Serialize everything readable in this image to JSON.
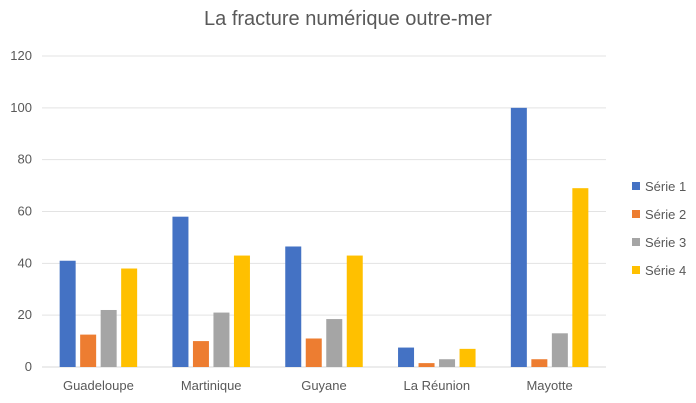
{
  "chart_data": {
    "type": "bar",
    "title": "La fracture numérique outre-mer",
    "categories": [
      "Guadeloupe",
      "Martinique",
      "Guyane",
      "La Réunion",
      "Mayotte"
    ],
    "series": [
      {
        "name": "Série 1",
        "color": "#4472C4",
        "values": [
          41,
          58,
          46.5,
          7.5,
          100
        ]
      },
      {
        "name": "Série 2",
        "color": "#ED7D31",
        "values": [
          12.5,
          10,
          11,
          1.5,
          3
        ]
      },
      {
        "name": "Série 3",
        "color": "#A5A5A5",
        "values": [
          22,
          21,
          18.5,
          3,
          13
        ]
      },
      {
        "name": "Série 4",
        "color": "#FFC000",
        "values": [
          38,
          43,
          43,
          7,
          69
        ]
      }
    ],
    "ylim": [
      0,
      120
    ],
    "yticks": [
      0,
      20,
      40,
      60,
      80,
      100,
      120
    ],
    "xlabel": "",
    "ylabel": "",
    "grid": true,
    "legend_position": "right"
  }
}
